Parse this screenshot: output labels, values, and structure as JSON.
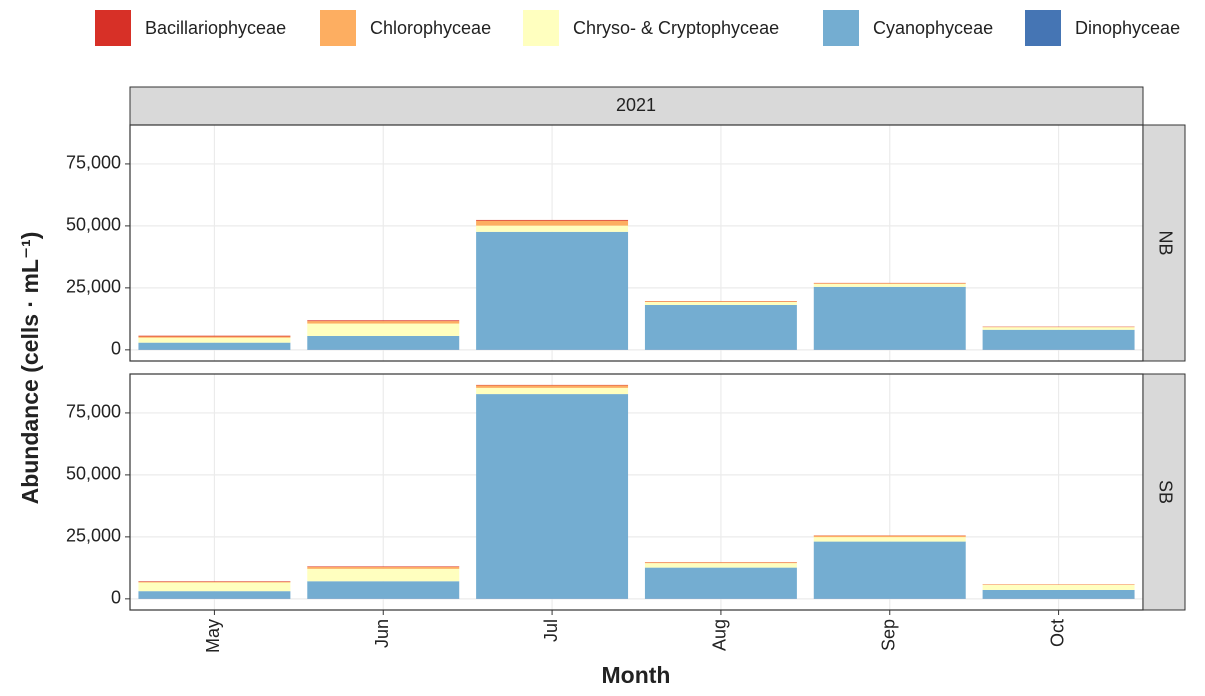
{
  "chart_data": [
    {
      "type": "bar",
      "stacked": true,
      "title": "2021",
      "panel_label": "NB",
      "x_label": "Month",
      "y_label": "Abundance (cells · mL⁻¹)",
      "categories": [
        "May",
        "Jun",
        "Jul",
        "Aug",
        "Sep",
        "Oct"
      ],
      "series": [
        {
          "name": "Bacillariophyceae",
          "color": "#d73027",
          "values": [
            300,
            300,
            300,
            100,
            100,
            100
          ]
        },
        {
          "name": "Chlorophyceae",
          "color": "#fdae61",
          "values": [
            500,
            1000,
            2000,
            300,
            300,
            200
          ]
        },
        {
          "name": "Chryso- & Cryptophyceae",
          "color": "#ffffbf",
          "values": [
            2000,
            5000,
            2500,
            1200,
            1200,
            1000
          ]
        },
        {
          "name": "Cyanophyceae",
          "color": "#74add1",
          "values": [
            2800,
            5500,
            47500,
            18000,
            25300,
            8000
          ]
        },
        {
          "name": "Dinophyceae",
          "color": "#4575b4",
          "values": [
            100,
            100,
            100,
            100,
            100,
            100
          ]
        }
      ],
      "ylim": [
        -4500,
        90700
      ],
      "yticks": [
        0,
        {
          "value": 25000,
          "label": "25,000"
        },
        {
          "value": 50000,
          "label": "50,000"
        },
        {
          "value": 75000,
          "label": "75,000"
        }
      ],
      "grid": true
    },
    {
      "type": "bar",
      "stacked": true,
      "panel_label": "SB",
      "categories": [
        "May",
        "Jun",
        "Jul",
        "Aug",
        "Sep",
        "Oct"
      ],
      "series": [
        {
          "name": "Bacillariophyceae",
          "color": "#d73027",
          "values": [
            200,
            200,
            200,
            100,
            100,
            50
          ]
        },
        {
          "name": "Chlorophyceae",
          "color": "#fdae61",
          "values": [
            300,
            800,
            1000,
            300,
            600,
            200
          ]
        },
        {
          "name": "Chryso- & Cryptophyceae",
          "color": "#ffffbf",
          "values": [
            3500,
            5000,
            2500,
            1800,
            1800,
            2000
          ]
        },
        {
          "name": "Cyanophyceae",
          "color": "#74add1",
          "values": [
            3000,
            7000,
            82500,
            12500,
            23000,
            3500
          ]
        },
        {
          "name": "Dinophyceae",
          "color": "#4575b4",
          "values": [
            100,
            100,
            100,
            100,
            100,
            100
          ]
        }
      ],
      "ylim": [
        -4500,
        90700
      ],
      "yticks": [
        0,
        {
          "value": 25000,
          "label": "25,000"
        },
        {
          "value": 50000,
          "label": "50,000"
        },
        {
          "value": 75000,
          "label": "75,000"
        }
      ],
      "grid": true
    }
  ]
}
